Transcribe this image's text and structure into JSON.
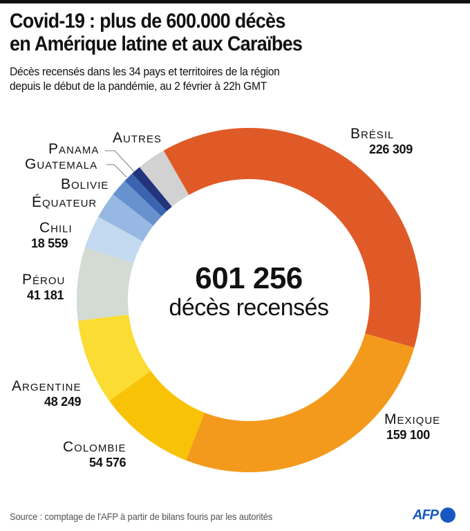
{
  "header": {
    "title_line1": "Covid-19 : plus de 600.000 décès",
    "title_line2": "en Amérique latine et aux Caraïbes",
    "subtitle_line1": "Décès recensés dans les 34 pays et territoires de la région",
    "subtitle_line2": "depuis le début de la pandémie, au 2 février à 22h GMT"
  },
  "center": {
    "total": "601 256",
    "caption": "décès recensés"
  },
  "footer": {
    "source": "Source : comptage de l'AFP à partir de bilans fouris par les autorités",
    "logo_text": "AFP",
    "logo_color": "#1757C2"
  },
  "chart_data": {
    "type": "pie",
    "variant": "donut",
    "title": "Covid-19 : plus de 600.000 décès en Amérique latine et aux Caraïbes",
    "subtitle": "Décès recensés dans les 34 pays et territoires de la région depuis le début de la pandémie, au 2 février à 22h GMT",
    "total": 601256,
    "total_label": "601 256",
    "direction": "clockwise",
    "slices": [
      {
        "name": "Brésil",
        "value": 226309,
        "label": "226 309",
        "color": "#E05A27",
        "labeled_value": true
      },
      {
        "name": "Mexique",
        "value": 159100,
        "label": "159 100",
        "color": "#F39A1C",
        "labeled_value": true
      },
      {
        "name": "Colombie",
        "value": 54576,
        "label": "54 576",
        "color": "#F8C307",
        "labeled_value": true
      },
      {
        "name": "Argentine",
        "value": 48249,
        "label": "48 249",
        "color": "#FADC32",
        "labeled_value": true
      },
      {
        "name": "Pérou",
        "value": 41181,
        "label": "41 181",
        "color": "#D3DCD3",
        "labeled_value": true
      },
      {
        "name": "Chili",
        "value": 18559,
        "label": "18 559",
        "color": "#C3D9F0",
        "labeled_value": true
      },
      {
        "name": "Équateur",
        "value": 14898,
        "label": "",
        "color": "#97B8E2",
        "labeled_value": false
      },
      {
        "name": "Bolivie",
        "value": 9865,
        "label": "",
        "color": "#6892CE",
        "labeled_value": false
      },
      {
        "name": "Guatemala",
        "value": 5834,
        "label": "",
        "color": "#3A64B0",
        "labeled_value": false
      },
      {
        "name": "Panama",
        "value": 5434,
        "label": "",
        "color": "#21347C",
        "labeled_value": false
      },
      {
        "name": "Autres",
        "value": 16251,
        "label": "",
        "color": "#D2D2D2",
        "labeled_value": false
      }
    ],
    "labels": {
      "bresil": {
        "name": "Brésil",
        "value": "226 309"
      },
      "mexique": {
        "name": "Mexique",
        "value": "159 100"
      },
      "colombie": {
        "name": "Colombie",
        "value": "54 576"
      },
      "argentine": {
        "name": "Argentine",
        "value": "48 249"
      },
      "perou": {
        "name": "Pérou",
        "value": "41 181"
      },
      "chili": {
        "name": "Chili",
        "value": "18 559"
      },
      "equateur": {
        "name": "Équateur"
      },
      "bolivie": {
        "name": "Bolivie"
      },
      "guatemala": {
        "name": "Guatemala"
      },
      "panama": {
        "name": "Panama"
      },
      "autres": {
        "name": "Autres"
      }
    },
    "legend": "none (direct labels)"
  }
}
